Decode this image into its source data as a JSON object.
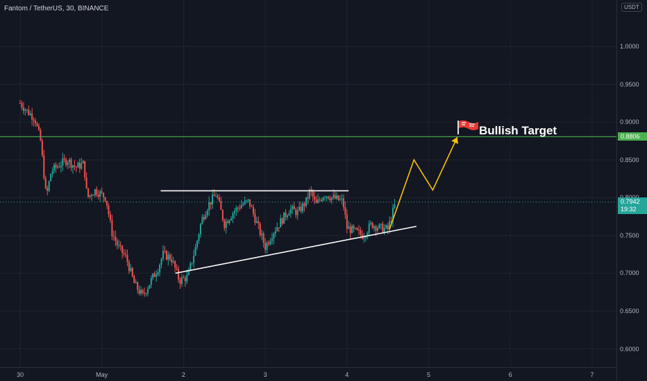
{
  "header": {
    "symbol_line": "Fantom / TetherUS, 30, BINANCE"
  },
  "price_axis": {
    "currency": "USDT",
    "ticks": [
      "1.0000",
      "0.9500",
      "0.9000",
      "0.8500",
      "0.8000",
      "0.7500",
      "0.7000",
      "0.6500",
      "0.6000"
    ],
    "target_price": "0.8806",
    "last_price": "0.7942",
    "countdown": "19:32"
  },
  "time_axis": {
    "ticks": [
      "30",
      "May",
      "2",
      "3",
      "4",
      "5",
      "6",
      "7"
    ]
  },
  "annotations": {
    "target_label": "Bullish Target",
    "target_icon": "red-flag-icon"
  },
  "colors": {
    "up": "#26a69a",
    "down": "#ef5350",
    "target_line": "#4caf50",
    "projection": "#ffc107",
    "trendline": "#ffffff",
    "background": "#131722"
  },
  "chart_data": {
    "type": "candlestick",
    "title": "Fantom / TetherUS, 30, BINANCE",
    "interval": "30",
    "xlabel": "",
    "ylabel": "",
    "x_ticks": [
      "30",
      "May",
      "2",
      "3",
      "4",
      "5",
      "6",
      "7"
    ],
    "ylim": [
      0.58,
      1.06
    ],
    "y_ticks": [
      1.0,
      0.95,
      0.9,
      0.85,
      0.8,
      0.75,
      0.7,
      0.65,
      0.6
    ],
    "horizontal_line": 0.8806,
    "last_price": 0.7942,
    "price_path": [
      {
        "x": 0.0,
        "y": 0.925
      },
      {
        "x": 0.08,
        "y": 0.915
      },
      {
        "x": 0.18,
        "y": 0.905
      },
      {
        "x": 0.25,
        "y": 0.875
      },
      {
        "x": 0.32,
        "y": 0.8
      },
      {
        "x": 0.38,
        "y": 0.835
      },
      {
        "x": 0.5,
        "y": 0.845
      },
      {
        "x": 0.58,
        "y": 0.85
      },
      {
        "x": 0.68,
        "y": 0.84
      },
      {
        "x": 0.78,
        "y": 0.845
      },
      {
        "x": 0.82,
        "y": 0.8
      },
      {
        "x": 0.92,
        "y": 0.81
      },
      {
        "x": 1.05,
        "y": 0.8
      },
      {
        "x": 1.12,
        "y": 0.755
      },
      {
        "x": 1.2,
        "y": 0.735
      },
      {
        "x": 1.3,
        "y": 0.72
      },
      {
        "x": 1.4,
        "y": 0.685
      },
      {
        "x": 1.5,
        "y": 0.67
      },
      {
        "x": 1.6,
        "y": 0.69
      },
      {
        "x": 1.68,
        "y": 0.705
      },
      {
        "x": 1.75,
        "y": 0.725
      },
      {
        "x": 1.85,
        "y": 0.72
      },
      {
        "x": 1.95,
        "y": 0.69
      },
      {
        "x": 2.05,
        "y": 0.695
      },
      {
        "x": 2.15,
        "y": 0.735
      },
      {
        "x": 2.22,
        "y": 0.77
      },
      {
        "x": 2.3,
        "y": 0.79
      },
      {
        "x": 2.4,
        "y": 0.805
      },
      {
        "x": 2.5,
        "y": 0.765
      },
      {
        "x": 2.6,
        "y": 0.78
      },
      {
        "x": 2.7,
        "y": 0.79
      },
      {
        "x": 2.8,
        "y": 0.795
      },
      {
        "x": 2.9,
        "y": 0.765
      },
      {
        "x": 3.0,
        "y": 0.735
      },
      {
        "x": 3.1,
        "y": 0.755
      },
      {
        "x": 3.2,
        "y": 0.77
      },
      {
        "x": 3.3,
        "y": 0.785
      },
      {
        "x": 3.4,
        "y": 0.78
      },
      {
        "x": 3.5,
        "y": 0.795
      },
      {
        "x": 3.55,
        "y": 0.81
      },
      {
        "x": 3.62,
        "y": 0.79
      },
      {
        "x": 3.72,
        "y": 0.805
      },
      {
        "x": 3.82,
        "y": 0.8
      },
      {
        "x": 3.95,
        "y": 0.795
      },
      {
        "x": 4.0,
        "y": 0.76
      },
      {
        "x": 4.1,
        "y": 0.755
      },
      {
        "x": 4.2,
        "y": 0.75
      },
      {
        "x": 4.3,
        "y": 0.765
      },
      {
        "x": 4.4,
        "y": 0.76
      },
      {
        "x": 4.5,
        "y": 0.758
      },
      {
        "x": 4.6,
        "y": 0.795
      }
    ],
    "drawings": {
      "resistance_line": [
        {
          "x": 1.72,
          "y": 0.809
        },
        {
          "x": 4.02,
          "y": 0.809
        }
      ],
      "support_line": [
        {
          "x": 1.9,
          "y": 0.7
        },
        {
          "x": 4.85,
          "y": 0.762
        }
      ],
      "projection_path": [
        {
          "x": 4.52,
          "y": 0.758
        },
        {
          "x": 4.82,
          "y": 0.85
        },
        {
          "x": 5.05,
          "y": 0.81
        },
        {
          "x": 5.35,
          "y": 0.88
        }
      ]
    }
  }
}
